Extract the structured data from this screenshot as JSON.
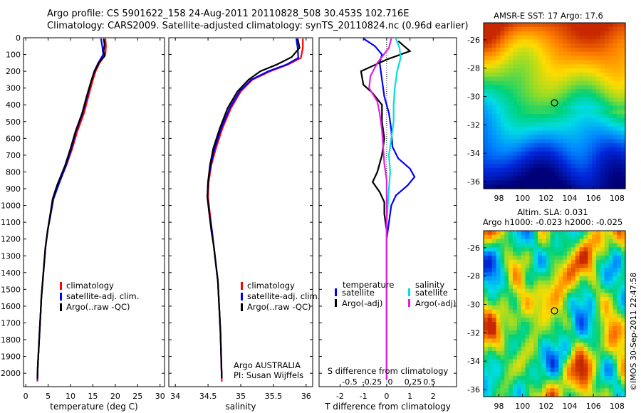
{
  "header": {
    "line1": "Argo profile: CS 5901622_158 24-Aug-2011 20110828_508 30.453S 102.716E",
    "line2": "Climatology: CARS2009. Satellite-adjusted climatology: synTS_20110824.nc (0.96d earlier)"
  },
  "colors": {
    "climatology": "#ff0000",
    "satellite": "#0000ff",
    "argo": "#000000",
    "sal_satellite": "#00e0e0",
    "sal_argo": "#e020e0"
  },
  "chart_data": [
    {
      "id": "temperature",
      "type": "line",
      "xlabel": "temperature (deg C)",
      "xlim": [
        -0.5,
        31
      ],
      "xticks": [
        0,
        5,
        10,
        15,
        20,
        25,
        30
      ],
      "ylim": [
        0,
        2080
      ],
      "yticks": [
        0,
        100,
        200,
        300,
        400,
        500,
        600,
        700,
        800,
        900,
        1000,
        1100,
        1200,
        1300,
        1400,
        1500,
        1600,
        1700,
        1800,
        1900,
        2000
      ],
      "legend": [
        "climatology",
        "satellite-adj. clim.",
        "Argo(..raw -QC)"
      ],
      "series": [
        {
          "name": "climatology",
          "color": "#ff0000",
          "points": [
            [
              17.8,
              5
            ],
            [
              17.9,
              50
            ],
            [
              17.8,
              100
            ],
            [
              16.5,
              150
            ],
            [
              15.6,
              200
            ],
            [
              14.9,
              260
            ],
            [
              14,
              350
            ],
            [
              13,
              450
            ],
            [
              11.5,
              560
            ],
            [
              10.4,
              660
            ],
            [
              9.1,
              760
            ],
            [
              7.2,
              880
            ],
            [
              6.1,
              960
            ],
            [
              5.5,
              1050
            ],
            [
              4.9,
              1150
            ],
            [
              4.4,
              1250
            ],
            [
              4.1,
              1350
            ],
            [
              3.8,
              1450
            ],
            [
              3.5,
              1550
            ],
            [
              3.3,
              1650
            ],
            [
              3.1,
              1750
            ],
            [
              2.9,
              1850
            ],
            [
              2.7,
              1950
            ],
            [
              2.6,
              2050
            ]
          ]
        },
        {
          "name": "satellite",
          "color": "#0000ff",
          "points": [
            [
              16.8,
              5
            ],
            [
              17.1,
              50
            ],
            [
              17.3,
              100
            ],
            [
              16.2,
              150
            ],
            [
              15.3,
              200
            ],
            [
              14.6,
              260
            ],
            [
              13.7,
              350
            ],
            [
              12.7,
              450
            ],
            [
              11.2,
              560
            ],
            [
              10.2,
              660
            ],
            [
              9,
              760
            ],
            [
              7.3,
              880
            ],
            [
              6.2,
              960
            ],
            [
              5.6,
              1050
            ],
            [
              4.9,
              1150
            ],
            [
              4.4,
              1250
            ],
            [
              4.1,
              1350
            ],
            [
              3.8,
              1450
            ],
            [
              3.5,
              1550
            ],
            [
              3.3,
              1650
            ],
            [
              3.1,
              1750
            ],
            [
              2.9,
              1850
            ],
            [
              2.7,
              1950
            ],
            [
              2.6,
              2040
            ]
          ]
        },
        {
          "name": "argo",
          "color": "#000000",
          "points": [
            [
              17.4,
              5
            ],
            [
              17.6,
              40
            ],
            [
              17.4,
              80
            ],
            [
              17.6,
              110
            ],
            [
              16.3,
              150
            ],
            [
              15.4,
              200
            ],
            [
              14.6,
              260
            ],
            [
              13.6,
              350
            ],
            [
              12.6,
              450
            ],
            [
              11.1,
              560
            ],
            [
              10,
              660
            ],
            [
              8.8,
              760
            ],
            [
              7,
              880
            ],
            [
              6,
              960
            ],
            [
              5.5,
              1050
            ],
            [
              4.9,
              1150
            ],
            [
              4.4,
              1250
            ],
            [
              4.1,
              1350
            ],
            [
              3.8,
              1450
            ],
            [
              3.5,
              1550
            ],
            [
              3.3,
              1650
            ],
            [
              3.1,
              1750
            ],
            [
              2.9,
              1850
            ],
            [
              2.7,
              1950
            ],
            [
              2.6,
              2030
            ]
          ]
        }
      ]
    },
    {
      "id": "salinity",
      "type": "line",
      "xlabel": "salinity",
      "xlim": [
        33.9,
        36.1
      ],
      "xticks": [
        34,
        34.5,
        35,
        35.5,
        36
      ],
      "ylim": [
        0,
        2080
      ],
      "legend": [
        "climatology",
        "satellite-adj. clim.",
        "Argo(..raw -QC)"
      ],
      "annotations": [
        "Argo AUSTRALIA",
        "PI: Susan Wijffels"
      ],
      "series": [
        {
          "name": "climatology",
          "color": "#ff0000",
          "points": [
            [
              35.95,
              5
            ],
            [
              35.95,
              60
            ],
            [
              35.92,
              120
            ],
            [
              35.72,
              160
            ],
            [
              35.45,
              200
            ],
            [
              35.18,
              250
            ],
            [
              35,
              320
            ],
            [
              34.85,
              420
            ],
            [
              34.72,
              540
            ],
            [
              34.62,
              660
            ],
            [
              34.55,
              760
            ],
            [
              34.51,
              860
            ],
            [
              34.5,
              950
            ],
            [
              34.53,
              1050
            ],
            [
              34.56,
              1150
            ],
            [
              34.59,
              1250
            ],
            [
              34.62,
              1350
            ],
            [
              34.65,
              1450
            ],
            [
              34.67,
              1600
            ],
            [
              34.69,
              1750
            ],
            [
              34.7,
              1900
            ],
            [
              34.71,
              2050
            ]
          ]
        },
        {
          "name": "satellite",
          "color": "#0000ff",
          "points": [
            [
              35.85,
              5
            ],
            [
              35.87,
              60
            ],
            [
              35.88,
              120
            ],
            [
              35.7,
              160
            ],
            [
              35.42,
              200
            ],
            [
              35.16,
              250
            ],
            [
              34.98,
              320
            ],
            [
              34.83,
              420
            ],
            [
              34.7,
              540
            ],
            [
              34.6,
              660
            ],
            [
              34.54,
              760
            ],
            [
              34.5,
              860
            ],
            [
              34.49,
              950
            ],
            [
              34.52,
              1050
            ],
            [
              34.56,
              1150
            ],
            [
              34.59,
              1250
            ],
            [
              34.62,
              1350
            ],
            [
              34.65,
              1450
            ],
            [
              34.67,
              1600
            ],
            [
              34.69,
              1750
            ],
            [
              34.7,
              1900
            ],
            [
              34.71,
              2030
            ]
          ]
        },
        {
          "name": "argo",
          "color": "#000000",
          "points": [
            [
              35.87,
              5
            ],
            [
              35.9,
              60
            ],
            [
              35.78,
              115
            ],
            [
              35.55,
              160
            ],
            [
              35.3,
              200
            ],
            [
              35.12,
              250
            ],
            [
              34.95,
              320
            ],
            [
              34.8,
              420
            ],
            [
              34.68,
              540
            ],
            [
              34.58,
              660
            ],
            [
              34.53,
              760
            ],
            [
              34.5,
              860
            ],
            [
              34.49,
              950
            ],
            [
              34.52,
              1050
            ],
            [
              34.55,
              1150
            ],
            [
              34.59,
              1250
            ],
            [
              34.62,
              1350
            ],
            [
              34.65,
              1450
            ],
            [
              34.67,
              1600
            ],
            [
              34.69,
              1750
            ],
            [
              34.7,
              1900
            ],
            [
              34.71,
              2030
            ]
          ]
        }
      ]
    },
    {
      "id": "differences",
      "type": "line",
      "xlabel": "T difference from climatology",
      "toplabel": "S difference from climatology",
      "xlim": [
        -2.9,
        3
      ],
      "xticks": [
        -2,
        -1,
        0,
        1,
        2
      ],
      "sticks": [
        "-0.5",
        "-0.25",
        "0",
        "0.25",
        "0.5"
      ],
      "ylim": [
        0,
        2080
      ],
      "legend_groups": [
        {
          "title": "temperature",
          "items": [
            "satellite",
            "Argo(-adj)"
          ]
        },
        {
          "title": "salinity",
          "items": [
            "satellite",
            "Argo(-adj)"
          ]
        }
      ],
      "series": [
        {
          "name": "T satellite",
          "color": "#0000ff",
          "points": [
            [
              -1,
              5
            ],
            [
              -0.5,
              50
            ],
            [
              -0.2,
              100
            ],
            [
              -0.3,
              150
            ],
            [
              -0.2,
              250
            ],
            [
              -0.1,
              350
            ],
            [
              0.1,
              450
            ],
            [
              0.2,
              550
            ],
            [
              0.25,
              650
            ],
            [
              0.5,
              720
            ],
            [
              1,
              780
            ],
            [
              1.2,
              830
            ],
            [
              0.9,
              880
            ],
            [
              0.4,
              940
            ],
            [
              0.2,
              1000
            ],
            [
              0.1,
              1100
            ],
            [
              0,
              1200
            ],
            [
              0,
              1400
            ],
            [
              0,
              1600
            ],
            [
              0,
              1800
            ],
            [
              0,
              2040
            ]
          ]
        },
        {
          "name": "T argo",
          "color": "#000000",
          "points": [
            [
              0.5,
              20
            ],
            [
              1,
              80
            ],
            [
              0,
              130
            ],
            [
              -1.1,
              200
            ],
            [
              -1,
              280
            ],
            [
              -0.6,
              330
            ],
            [
              -0.2,
              400
            ],
            [
              -0.2,
              500
            ],
            [
              -0.1,
              600
            ],
            [
              -0.2,
              700
            ],
            [
              -0.4,
              800
            ],
            [
              -0.6,
              860
            ],
            [
              -0.3,
              920
            ],
            [
              -0.1,
              980
            ],
            [
              -0.1,
              1050
            ],
            [
              0,
              1150
            ],
            [
              0,
              1400
            ],
            [
              0,
              1700
            ],
            [
              0,
              2000
            ]
          ]
        },
        {
          "name": "S satellite",
          "color": "#00e0e0",
          "points": [
            [
              0.4,
              5
            ],
            [
              0.55,
              60
            ],
            [
              0.6,
              120
            ],
            [
              0.45,
              200
            ],
            [
              0.35,
              300
            ],
            [
              0.3,
              400
            ],
            [
              0.3,
              500
            ],
            [
              0.2,
              600
            ],
            [
              0.1,
              700
            ],
            [
              0.15,
              800
            ],
            [
              0.1,
              900
            ],
            [
              0.05,
              1000
            ],
            [
              0,
              1100
            ],
            [
              0,
              1300
            ],
            [
              0,
              1600
            ],
            [
              0,
              2040
            ]
          ]
        },
        {
          "name": "S argo",
          "color": "#e020e0",
          "points": [
            [
              0.2,
              5
            ],
            [
              0.1,
              60
            ],
            [
              -0.4,
              150
            ],
            [
              -0.7,
              230
            ],
            [
              -0.75,
              300
            ],
            [
              -0.4,
              380
            ],
            [
              -0.3,
              450
            ],
            [
              -0.2,
              550
            ],
            [
              -0.15,
              650
            ],
            [
              -0.1,
              750
            ],
            [
              0,
              850
            ],
            [
              0,
              1000
            ],
            [
              0,
              1200
            ],
            [
              0,
              1500
            ],
            [
              0,
              1800
            ],
            [
              0,
              2040
            ]
          ]
        }
      ]
    },
    {
      "id": "sst_map",
      "type": "heatmap",
      "title": "AMSR-E SST: 17  Argo: 17.6",
      "xticks": [
        98,
        100,
        102,
        104,
        106,
        108
      ],
      "yticks": [
        -26,
        -28,
        -30,
        -32,
        -34,
        -36
      ],
      "xlim": [
        96.7,
        108.7
      ],
      "ylim": [
        -36.5,
        -24.8
      ],
      "marker": [
        102.7,
        -30.45
      ]
    },
    {
      "id": "sla_map",
      "type": "heatmap",
      "title": "Altim. SLA: 0.031",
      "subtitle": "Argo h1000: -0.023 h2000: -0.025",
      "xticks": [
        98,
        100,
        102,
        104,
        106,
        108
      ],
      "yticks": [
        -26,
        -28,
        -30,
        -32,
        -34,
        -36
      ],
      "xlim": [
        96.7,
        108.7
      ],
      "ylim": [
        -36.5,
        -24.8
      ],
      "marker": [
        102.7,
        -30.45
      ]
    }
  ],
  "credit": "©IMOS 30-Sep-2011 22:47:58"
}
